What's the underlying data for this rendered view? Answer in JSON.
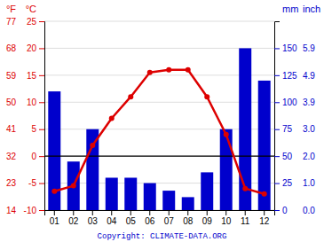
{
  "chart_data": {
    "type": "bar",
    "categories": [
      "01",
      "02",
      "03",
      "04",
      "05",
      "06",
      "07",
      "08",
      "09",
      "10",
      "11",
      "12"
    ],
    "series": [
      {
        "type": "bar",
        "color": "#0000cc",
        "axis": "y2",
        "values": [
          110,
          45,
          75,
          30,
          30,
          25,
          18,
          12,
          35,
          75,
          150,
          120
        ]
      },
      {
        "type": "line",
        "color": "#dd0000",
        "marker": "circle",
        "values": [
          -6.5,
          -5.5,
          2.0,
          7.0,
          11.0,
          15.5,
          16.0,
          16.0,
          11.0,
          4.0,
          -6.0,
          -7.0
        ]
      }
    ],
    "ylabel": "°C",
    "ylim": [
      -10,
      25
    ],
    "yticks": [
      -10,
      -5,
      0,
      5,
      10,
      15,
      20,
      25
    ],
    "y_alt_label": "°F",
    "y_alt_ticks": [
      {
        "value": -10,
        "label": "14"
      },
      {
        "value": -5,
        "label": "23"
      },
      {
        "value": 0,
        "label": "32"
      },
      {
        "value": 5,
        "label": "41"
      },
      {
        "value": 10,
        "label": "50"
      },
      {
        "value": 15,
        "label": "59"
      },
      {
        "value": 20,
        "label": "68"
      },
      {
        "value": 25,
        "label": "77"
      }
    ],
    "y2label": "mm",
    "y2lim": [
      0,
      175
    ],
    "y2ticks": [
      0,
      25,
      50,
      75,
      100,
      125,
      150
    ],
    "y2_alt_label": "inch",
    "y2_alt_ticks": [
      {
        "value": 0,
        "label": "0.0"
      },
      {
        "value": 25,
        "label": "1.0"
      },
      {
        "value": 50,
        "label": "2.0"
      },
      {
        "value": 75,
        "label": "3.0"
      },
      {
        "value": 100,
        "label": "3.9"
      },
      {
        "value": 125,
        "label": "4.9"
      },
      {
        "value": 150,
        "label": "5.9"
      }
    ],
    "grid": true,
    "annotations": [
      "Copyright: CLIMATE-DATA.ORG"
    ]
  }
}
